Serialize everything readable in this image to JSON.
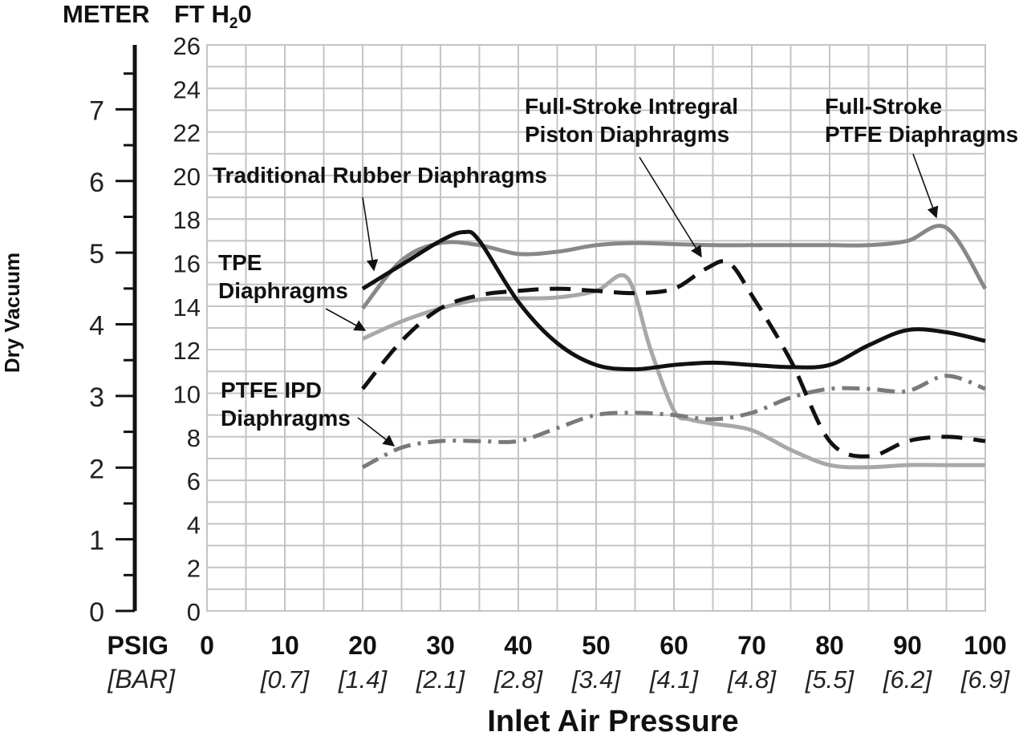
{
  "chart_data": {
    "type": "line",
    "title": "",
    "xlabel": "Inlet Air Pressure",
    "ylabel": "Dry Vacuum",
    "left_axis_unit": "METER",
    "right_axis_unit_prefix": "FT H",
    "right_axis_unit_sub": "2",
    "right_axis_unit_suffix": "0",
    "x_row_label": "PSIG",
    "x_row_label_bar": "[BAR]",
    "xlim": [
      0,
      100
    ],
    "ylim": [
      0,
      26
    ],
    "ylim_meter": [
      0,
      7.9
    ],
    "grid": true,
    "x_ticks": [
      0,
      10,
      20,
      30,
      40,
      50,
      60,
      70,
      80,
      90,
      100
    ],
    "x_tick_labels": [
      "0",
      "10",
      "20",
      "30",
      "40",
      "50",
      "60",
      "70",
      "80",
      "90",
      "100"
    ],
    "x_bar_labels": [
      "",
      "[0.7]",
      "[1.4]",
      "[2.1]",
      "[2.8]",
      "[3.4]",
      "[4.1]",
      "[4.8]",
      "[5.5]",
      "[6.2]",
      "[6.9]"
    ],
    "y_ticks_ft": [
      0,
      2,
      4,
      6,
      8,
      10,
      12,
      14,
      16,
      18,
      20,
      22,
      24,
      26
    ],
    "y_tick_labels_ft": [
      "0",
      "2",
      "4",
      "6",
      "8",
      "10",
      "12",
      "14",
      "16",
      "18",
      "20",
      "22",
      "24",
      "26"
    ],
    "y_ticks_meter": [
      0,
      1,
      2,
      3,
      4,
      5,
      6,
      7
    ],
    "y_tick_labels_meter": [
      "0",
      "1",
      "2",
      "3",
      "4",
      "5",
      "6",
      "7"
    ],
    "series": [
      {
        "name": "Traditional Rubber Diaphragms",
        "color": "#111111",
        "dash": "solid",
        "x": [
          20,
          25,
          30,
          33,
          35,
          40,
          45,
          50,
          55,
          60,
          65,
          70,
          75,
          80,
          85,
          90,
          95,
          100
        ],
        "y": [
          14.8,
          15.9,
          17.0,
          17.4,
          17.0,
          14.2,
          12.3,
          11.3,
          11.1,
          11.3,
          11.4,
          11.3,
          11.2,
          11.3,
          12.2,
          12.9,
          12.8,
          12.4
        ]
      },
      {
        "name": "Full-Stroke PTFE Diaphragms",
        "color": "#888888",
        "dash": "solid",
        "x": [
          20,
          25,
          30,
          35,
          40,
          45,
          50,
          55,
          60,
          65,
          70,
          75,
          80,
          85,
          90,
          95,
          100
        ],
        "y": [
          13.9,
          16.1,
          16.9,
          16.8,
          16.4,
          16.5,
          16.8,
          16.9,
          16.85,
          16.8,
          16.8,
          16.8,
          16.8,
          16.8,
          17.0,
          17.6,
          14.8
        ]
      },
      {
        "name": "TPE Diaphragms",
        "color": "#a8a8a8",
        "dash": "solid",
        "x": [
          20,
          25,
          30,
          35,
          40,
          45,
          50,
          54,
          57,
          60,
          62,
          65,
          70,
          75,
          80,
          85,
          90,
          95,
          100
        ],
        "y": [
          12.5,
          13.3,
          13.9,
          14.3,
          14.35,
          14.4,
          14.7,
          15.3,
          12.0,
          9.2,
          8.8,
          8.6,
          8.3,
          7.4,
          6.7,
          6.6,
          6.7,
          6.7,
          6.7
        ]
      },
      {
        "name": "Full-Stroke Intregral Piston Diaphragms",
        "color": "#111111",
        "dash": "dashed",
        "x": [
          20,
          25,
          30,
          35,
          40,
          45,
          50,
          55,
          60,
          64,
          67,
          70,
          75,
          80,
          85,
          90,
          95,
          100
        ],
        "y": [
          10.2,
          12.4,
          13.9,
          14.5,
          14.7,
          14.8,
          14.7,
          14.6,
          14.8,
          15.7,
          16.0,
          14.5,
          11.5,
          7.8,
          7.1,
          7.8,
          8.0,
          7.8
        ]
      },
      {
        "name": "PTFE IPD Diaphragms",
        "color": "#7a7a7a",
        "dash": "dashdot",
        "x": [
          20,
          25,
          30,
          35,
          40,
          45,
          50,
          55,
          60,
          65,
          70,
          75,
          80,
          85,
          90,
          95,
          100
        ],
        "y": [
          6.6,
          7.5,
          7.8,
          7.8,
          7.8,
          8.4,
          9.0,
          9.1,
          9.0,
          8.8,
          9.1,
          9.8,
          10.2,
          10.2,
          10.1,
          10.8,
          10.2
        ]
      }
    ],
    "annotations": [
      {
        "id": "rubber",
        "lines": [
          "Traditional Rubber Diaphragms"
        ]
      },
      {
        "id": "tpe",
        "lines": [
          "TPE",
          "Diaphragms"
        ]
      },
      {
        "id": "ptfeipd",
        "lines": [
          "PTFE IPD",
          "Diaphragms"
        ]
      },
      {
        "id": "fsipd",
        "lines": [
          "Full-Stroke Intregral",
          "Piston Diaphragms"
        ]
      },
      {
        "id": "fsptfe",
        "lines": [
          "Full-Stroke",
          "PTFE Diaphragms"
        ]
      }
    ]
  }
}
